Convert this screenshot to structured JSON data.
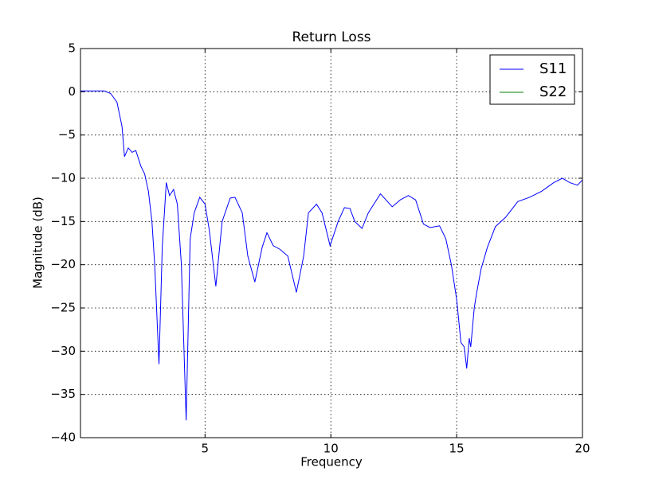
{
  "chart_data": {
    "type": "line",
    "title": "Return Loss",
    "x_label": "Frequency",
    "y_label": "Magnitude (dB)",
    "x": [
      0.05,
      0.5,
      1.0,
      1.25,
      1.5,
      1.7,
      1.8,
      1.95,
      2.1,
      2.25,
      2.45,
      2.6,
      2.75,
      2.89,
      3.0,
      3.17,
      3.3,
      3.46,
      3.59,
      3.75,
      3.9,
      4.06,
      4.25,
      4.41,
      4.57,
      4.79,
      5.0,
      5.17,
      5.43,
      5.68,
      6.0,
      6.19,
      6.48,
      6.7,
      6.98,
      7.27,
      7.46,
      7.71,
      7.97,
      8.29,
      8.63,
      8.92,
      9.11,
      9.43,
      9.65,
      9.97,
      10.29,
      10.54,
      10.76,
      10.95,
      11.24,
      11.49,
      11.97,
      12.44,
      12.76,
      13.08,
      13.37,
      13.68,
      13.94,
      14.32,
      14.57,
      14.79,
      15.0,
      15.17,
      15.3,
      15.4,
      15.5,
      15.56,
      15.7,
      15.78,
      15.97,
      16.22,
      16.54,
      16.95,
      17.43,
      17.9,
      18.38,
      18.86,
      19.2,
      19.49,
      19.8,
      20.0
    ],
    "series": [
      {
        "name": "S11",
        "color": "#0000ff",
        "values": [
          0.1,
          0.1,
          0.1,
          -0.2,
          -1.2,
          -4,
          -7.5,
          -6.5,
          -7,
          -6.8,
          -8.6,
          -9.5,
          -11.5,
          -15,
          -20,
          -31.5,
          -18,
          -10.5,
          -12,
          -11.3,
          -13,
          -20,
          -38,
          -17,
          -14,
          -12.2,
          -13,
          -16,
          -22.5,
          -15,
          -12.3,
          -12.2,
          -14,
          -19,
          -22,
          -18,
          -16.3,
          -17.8,
          -18.2,
          -19,
          -23.2,
          -19,
          -14,
          -13,
          -14,
          -17.8,
          -15,
          -13.4,
          -13.5,
          -15,
          -15.8,
          -14,
          -11.8,
          -13.3,
          -12.5,
          -12,
          -12.5,
          -15.3,
          -15.7,
          -15.5,
          -17,
          -20,
          -24,
          -29,
          -29.5,
          -32,
          -28.5,
          -29.5,
          -25,
          -23.5,
          -20.5,
          -18,
          -15.6,
          -14.5,
          -12.7,
          -12.2,
          -11.5,
          -10.5,
          -10,
          -10.5,
          -10.8,
          -10.2
        ]
      },
      {
        "name": "S22",
        "color": "#008000",
        "values": [
          null,
          null,
          null,
          null,
          null,
          null,
          null,
          null,
          null,
          null,
          null,
          null,
          null,
          null,
          null,
          null,
          null,
          null,
          null,
          null,
          null,
          null,
          null,
          null,
          null,
          null,
          null,
          null,
          null,
          null,
          null,
          null,
          null,
          null,
          null,
          null,
          null,
          null,
          null,
          null,
          null,
          null,
          null,
          null,
          null,
          null,
          null,
          null,
          null,
          null,
          null,
          null,
          null,
          null,
          null,
          null,
          null,
          null,
          null,
          null,
          null,
          null,
          null,
          null,
          null,
          null,
          null,
          null,
          null,
          null,
          null,
          null,
          null,
          null,
          null,
          null,
          null,
          null,
          null,
          null,
          null,
          null
        ]
      }
    ],
    "xlim": [
      0.05,
      20
    ],
    "xticks": [
      5,
      10,
      15,
      20
    ],
    "ylim": [
      -40,
      5
    ],
    "yticks": [
      {
        "value": -40,
        "label": "−40"
      },
      {
        "value": -35,
        "label": "−35"
      },
      {
        "value": -30,
        "label": "−30"
      },
      {
        "value": -25,
        "label": "−25"
      },
      {
        "value": -20,
        "label": "−20"
      },
      {
        "value": -15,
        "label": "−15"
      },
      {
        "value": -10,
        "label": "−10"
      },
      {
        "value": -5,
        "label": "−5"
      },
      0,
      5
    ],
    "grid": true,
    "legend": "upper right"
  }
}
